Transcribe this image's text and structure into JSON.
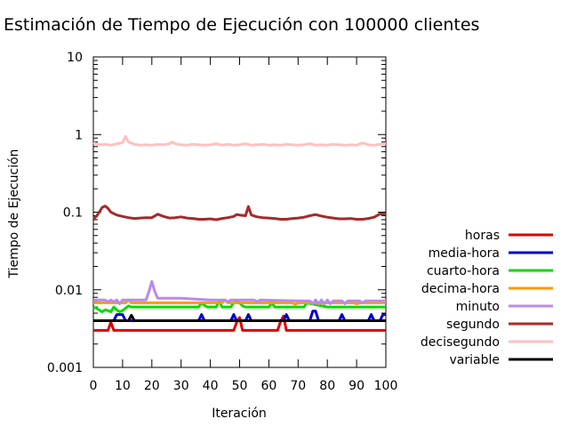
{
  "chart_data": {
    "type": "line",
    "title": "Estimación de Tiempo de Ejecución con 100000 clientes",
    "xlabel": "Iteración",
    "ylabel": "Tiempo de Ejecución",
    "xlim": [
      0,
      100
    ],
    "ylim": [
      0.001,
      10
    ],
    "y_scale": "log",
    "grid": false,
    "legend_position": "right",
    "x_ticks": [
      0,
      10,
      20,
      30,
      40,
      50,
      60,
      70,
      80,
      90,
      100
    ],
    "x_tick_labels": [
      "0",
      "10",
      "20",
      "30",
      "40",
      "50",
      "60",
      "70",
      "80",
      "90",
      "100"
    ],
    "y_ticks": [
      0.001,
      0.01,
      0.1,
      1,
      10
    ],
    "y_tick_labels": [
      "0.001",
      "0.01",
      "0.1",
      "1",
      "10"
    ],
    "series": [
      {
        "name": "horas",
        "color": "#dd0000",
        "x": [
          0,
          5,
          6,
          7,
          48,
          49,
          50,
          51,
          63,
          64,
          65,
          66,
          100
        ],
        "y": [
          0.003,
          0.003,
          0.0038,
          0.003,
          0.003,
          0.0038,
          0.0044,
          0.003,
          0.003,
          0.0039,
          0.0046,
          0.003,
          0.003
        ]
      },
      {
        "name": "media-hora",
        "color": "#0000cc",
        "x": [
          0,
          7,
          8,
          9,
          10,
          11,
          36,
          37,
          38,
          47,
          48,
          49,
          52,
          53,
          54,
          65,
          66,
          67,
          74,
          75,
          76,
          77,
          84,
          85,
          86,
          94,
          95,
          96,
          98,
          99,
          100
        ],
        "y": [
          0.004,
          0.004,
          0.0048,
          0.0048,
          0.0048,
          0.004,
          0.004,
          0.0048,
          0.004,
          0.004,
          0.0048,
          0.004,
          0.004,
          0.0048,
          0.004,
          0.004,
          0.0048,
          0.004,
          0.004,
          0.0053,
          0.0053,
          0.004,
          0.004,
          0.0048,
          0.004,
          0.004,
          0.0048,
          0.004,
          0.004,
          0.0048,
          0.0048
        ]
      },
      {
        "name": "cuarto-hora",
        "color": "#00dd00",
        "x": [
          0,
          1,
          2,
          3,
          4,
          5,
          6,
          7,
          8,
          9,
          10,
          11,
          12,
          13,
          30,
          31,
          36,
          37,
          38,
          39,
          42,
          43,
          44,
          47,
          48,
          49,
          50,
          51,
          52,
          60,
          61,
          62,
          72,
          73,
          80,
          81,
          100
        ],
        "y": [
          0.006,
          0.0058,
          0.0055,
          0.0052,
          0.0055,
          0.0054,
          0.0052,
          0.006,
          0.0055,
          0.0052,
          0.0054,
          0.0058,
          0.0062,
          0.006,
          0.006,
          0.006,
          0.006,
          0.0068,
          0.0063,
          0.006,
          0.006,
          0.0072,
          0.006,
          0.006,
          0.0068,
          0.0072,
          0.0068,
          0.0062,
          0.006,
          0.006,
          0.0068,
          0.006,
          0.006,
          0.0068,
          0.006,
          0.006,
          0.006
        ]
      },
      {
        "name": "decima-hora",
        "color": "#ff9900",
        "x": [
          0,
          11,
          12,
          13,
          30,
          31,
          44,
          45,
          46,
          68,
          69,
          70,
          76,
          77,
          78,
          89,
          90,
          91,
          100
        ],
        "y": [
          0.0068,
          0.0068,
          0.0074,
          0.0068,
          0.0068,
          0.0068,
          0.0068,
          0.0074,
          0.0068,
          0.0068,
          0.0065,
          0.0068,
          0.0068,
          0.0066,
          0.0068,
          0.0068,
          0.0066,
          0.0068,
          0.0068
        ]
      },
      {
        "name": "minuto",
        "color": "#bb88ee",
        "x": [
          0,
          4,
          5,
          6,
          7,
          8,
          9,
          10,
          18,
          19,
          20,
          21,
          22,
          30,
          40,
          45,
          46,
          47,
          55,
          56,
          57,
          70,
          74,
          75,
          76,
          77,
          78,
          79,
          80,
          81,
          82,
          85,
          86,
          87,
          91,
          92,
          93,
          100
        ],
        "y": [
          0.0074,
          0.0074,
          0.007,
          0.0074,
          0.007,
          0.0074,
          0.0066,
          0.0074,
          0.0074,
          0.0095,
          0.0128,
          0.0095,
          0.0078,
          0.0078,
          0.0074,
          0.0074,
          0.007,
          0.0074,
          0.0074,
          0.007,
          0.0074,
          0.0072,
          0.0072,
          0.0066,
          0.0074,
          0.0066,
          0.0074,
          0.0066,
          0.0074,
          0.0066,
          0.0072,
          0.0072,
          0.0066,
          0.0072,
          0.0072,
          0.0068,
          0.0072,
          0.0072
        ]
      },
      {
        "name": "segundo",
        "color": "#a52a2a",
        "x": [
          0,
          1,
          2,
          3,
          4,
          5,
          6,
          8,
          10,
          12,
          14,
          16,
          18,
          20,
          22,
          24,
          26,
          28,
          30,
          32,
          34,
          36,
          38,
          40,
          42,
          44,
          46,
          48,
          49,
          50,
          52,
          53,
          54,
          56,
          58,
          60,
          62,
          64,
          66,
          68,
          70,
          72,
          74,
          76,
          78,
          80,
          82,
          84,
          86,
          88,
          90,
          92,
          94,
          96,
          98,
          100
        ],
        "y": [
          0.082,
          0.088,
          0.1,
          0.115,
          0.12,
          0.112,
          0.1,
          0.092,
          0.088,
          0.085,
          0.083,
          0.084,
          0.085,
          0.085,
          0.094,
          0.088,
          0.084,
          0.085,
          0.087,
          0.084,
          0.083,
          0.081,
          0.081,
          0.082,
          0.08,
          0.083,
          0.085,
          0.088,
          0.093,
          0.092,
          0.09,
          0.118,
          0.092,
          0.087,
          0.085,
          0.084,
          0.083,
          0.081,
          0.081,
          0.083,
          0.084,
          0.086,
          0.09,
          0.093,
          0.089,
          0.086,
          0.084,
          0.082,
          0.082,
          0.083,
          0.081,
          0.081,
          0.083,
          0.086,
          0.095,
          0.094
        ]
      },
      {
        "name": "decisegundo",
        "color": "#ffc0c0",
        "x": [
          0,
          2,
          4,
          6,
          8,
          10,
          11,
          12,
          14,
          16,
          18,
          20,
          22,
          24,
          26,
          27,
          28,
          30,
          32,
          34,
          36,
          38,
          40,
          42,
          44,
          46,
          48,
          50,
          52,
          54,
          56,
          58,
          60,
          62,
          64,
          66,
          68,
          70,
          72,
          74,
          76,
          78,
          80,
          82,
          84,
          86,
          88,
          90,
          92,
          94,
          96,
          98,
          100
        ],
        "y": [
          0.78,
          0.74,
          0.75,
          0.73,
          0.76,
          0.79,
          0.95,
          0.8,
          0.75,
          0.73,
          0.74,
          0.73,
          0.75,
          0.74,
          0.76,
          0.8,
          0.76,
          0.74,
          0.73,
          0.75,
          0.74,
          0.73,
          0.74,
          0.76,
          0.73,
          0.75,
          0.73,
          0.74,
          0.76,
          0.73,
          0.74,
          0.75,
          0.73,
          0.74,
          0.73,
          0.75,
          0.74,
          0.73,
          0.74,
          0.76,
          0.73,
          0.74,
          0.73,
          0.75,
          0.74,
          0.73,
          0.74,
          0.73,
          0.78,
          0.74,
          0.73,
          0.75,
          0.77
        ]
      },
      {
        "name": "variable",
        "color": "#000000",
        "x": [
          0,
          12,
          13,
          14,
          100
        ],
        "y": [
          0.004,
          0.004,
          0.0047,
          0.004,
          0.004
        ]
      }
    ]
  }
}
